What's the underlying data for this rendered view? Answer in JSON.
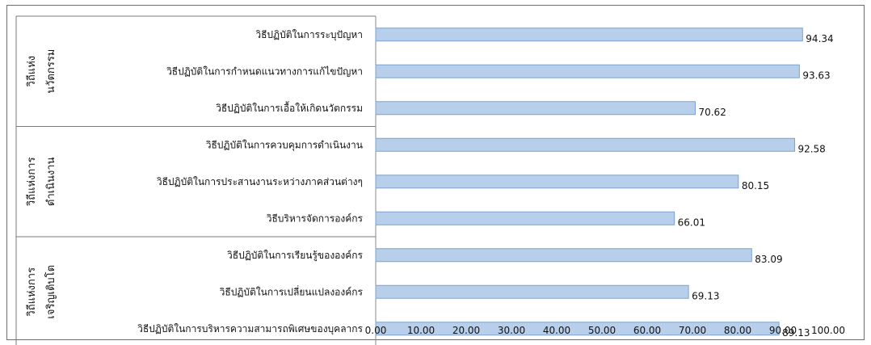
{
  "chart_data": {
    "type": "bar",
    "orientation": "horizontal",
    "title": "",
    "xlabel": "",
    "ylabel": "",
    "xlim": [
      0,
      100
    ],
    "ticks": [
      "0.00",
      "10.00",
      "20.00",
      "30.00",
      "40.00",
      "50.00",
      "60.00",
      "70.00",
      "80.00",
      "90.00",
      "100.00"
    ],
    "grid": false,
    "legend": "none",
    "bar_color": "#b8cfeb",
    "bar_edge_color": "#7ea0cc",
    "groups": [
      {
        "label_lines": [
          "วิถีแห่ง",
          "นวัตกรรม"
        ],
        "start": 0,
        "count": 3
      },
      {
        "label_lines": [
          "วิถีแห่งการ",
          "ดำเนินงาน"
        ],
        "start": 3,
        "count": 3
      },
      {
        "label_lines": [
          "วิถีแห่งการ",
          "เจริญเติบโต"
        ],
        "start": 6,
        "count": 3
      }
    ],
    "categories": [
      "วิธีปฏิบัติในการระบุปัญหา",
      "วิธีปฏิบัติในการกำหนดแนวทางการแก้ไขปัญหา",
      "วิธีปฏิบัติในการเอื้อให้เกิดนวัตกรรม",
      "วิธีปฏิบัติในการควบคุมการดำเนินงาน",
      "วิธีปฏิบัติในการประสานงานระหว่างภาคส่วนต่างๆ",
      "วิธีบริหารจัดการองค์กร",
      "วิธีปฏิบัติในการเรียนรู้ขององค์กร",
      "วิธีปฏิบัติในการเปลี่ยนแปลงองค์กร",
      "วิธีปฏิบัติในการบริหารความสามารถพิเศษของบุคลากร"
    ],
    "values": [
      94.34,
      93.63,
      70.62,
      92.58,
      80.15,
      66.01,
      83.09,
      69.13,
      89.13
    ],
    "value_labels": [
      "94.34",
      "93.63",
      "70.62",
      "92.58",
      "80.15",
      "66.01",
      "83.09",
      "69.13",
      "89.13"
    ]
  }
}
